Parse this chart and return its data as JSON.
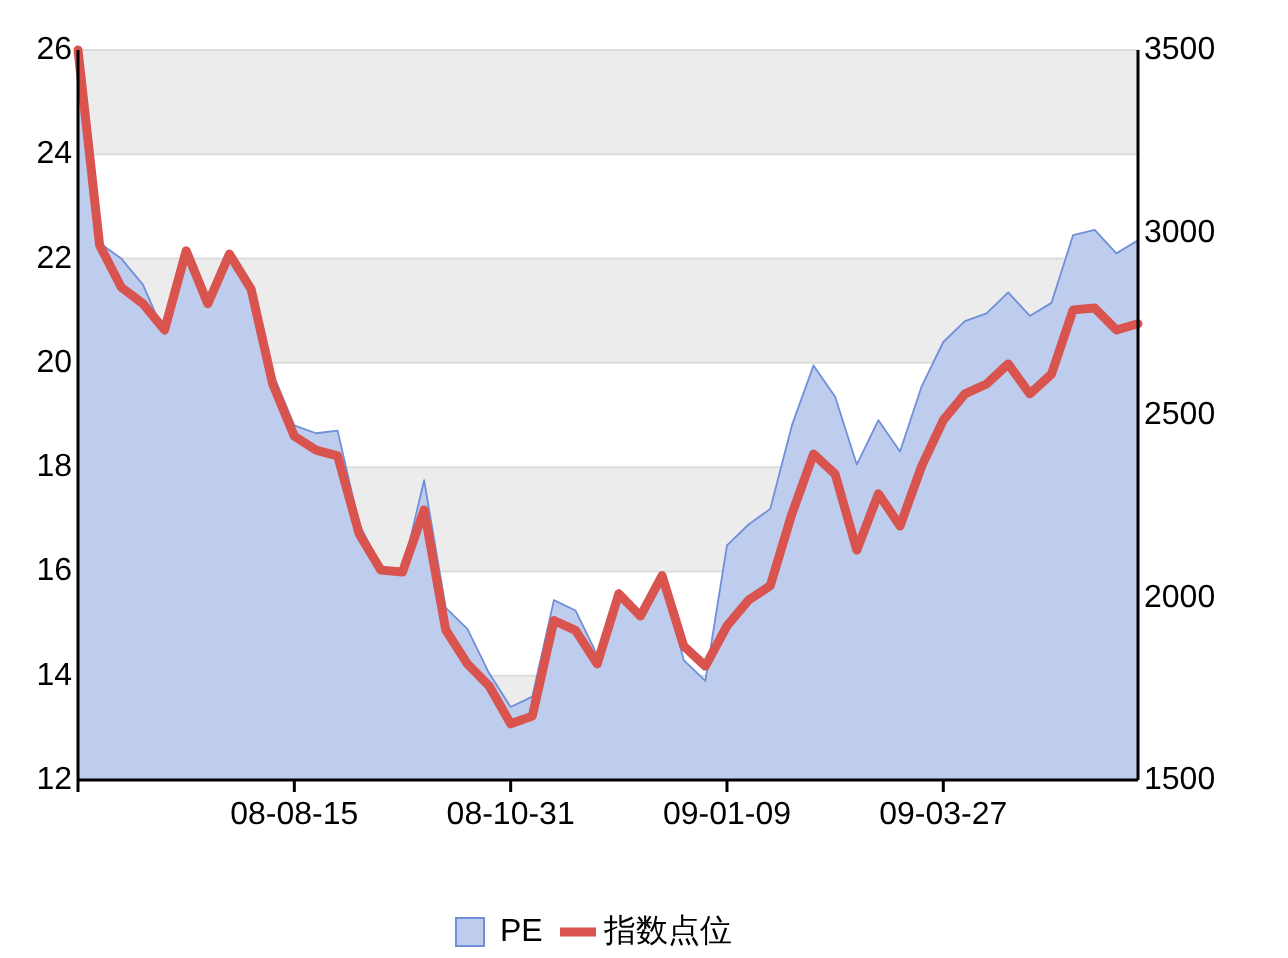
{
  "chart_data": {
    "type": "line",
    "categories": [
      null,
      null,
      null,
      null,
      null,
      null,
      null,
      null,
      null,
      null,
      "08-08-15",
      null,
      null,
      null,
      null,
      null,
      null,
      null,
      null,
      null,
      "08-10-31",
      null,
      null,
      null,
      null,
      null,
      null,
      null,
      null,
      null,
      "09-01-09",
      null,
      null,
      null,
      null,
      null,
      null,
      null,
      null,
      null,
      "09-03-27",
      null,
      null,
      null,
      null,
      null,
      null,
      null,
      null,
      null
    ],
    "series": [
      {
        "name": "PE",
        "type": "area",
        "color": "#6f8fd8",
        "values": [
          26,
          22.3,
          22.0,
          21.5,
          20.55,
          22.2,
          21.1,
          22.1,
          21.5,
          19.8,
          18.8,
          18.65,
          18.7,
          16.9,
          16.1,
          16.0,
          17.75,
          15.3,
          14.9,
          14.05,
          13.4,
          13.6,
          15.45,
          15.25,
          14.4,
          15.65,
          15.15,
          15.9,
          14.3,
          13.9,
          16.5,
          16.9,
          17.2,
          18.8,
          19.95,
          19.35,
          18.05,
          18.9,
          18.3,
          19.55,
          20.4,
          20.8,
          20.95,
          21.35,
          20.9,
          21.15,
          22.45,
          22.55,
          22.1,
          22.35
        ]
      },
      {
        "name": "指数点位",
        "axis": "y2",
        "color": "#d9534f",
        "values": [
          3500,
          2965,
          2850,
          2805,
          2733,
          2950,
          2805,
          2941,
          2845,
          2585,
          2442,
          2404,
          2388,
          2174,
          2075,
          2070,
          2240,
          1911,
          1818,
          1758,
          1654,
          1675,
          1937,
          1910,
          1818,
          2010,
          1949,
          2060,
          1867,
          1812,
          1922,
          1993,
          2032,
          2229,
          2393,
          2338,
          2130,
          2284,
          2196,
          2360,
          2486,
          2558,
          2585,
          2640,
          2558,
          2612,
          2788,
          2793,
          2733,
          2750
        ]
      }
    ],
    "ylim": [
      12,
      26
    ],
    "yticks": [
      12,
      14,
      16,
      18,
      20,
      22,
      24,
      26
    ],
    "y2lim": [
      1500,
      3500
    ],
    "y2ticks": [
      1500,
      2000,
      2500,
      3000,
      3500
    ],
    "grid": "y",
    "legend": "bottom",
    "marker": "none",
    "line_style": "solid"
  }
}
